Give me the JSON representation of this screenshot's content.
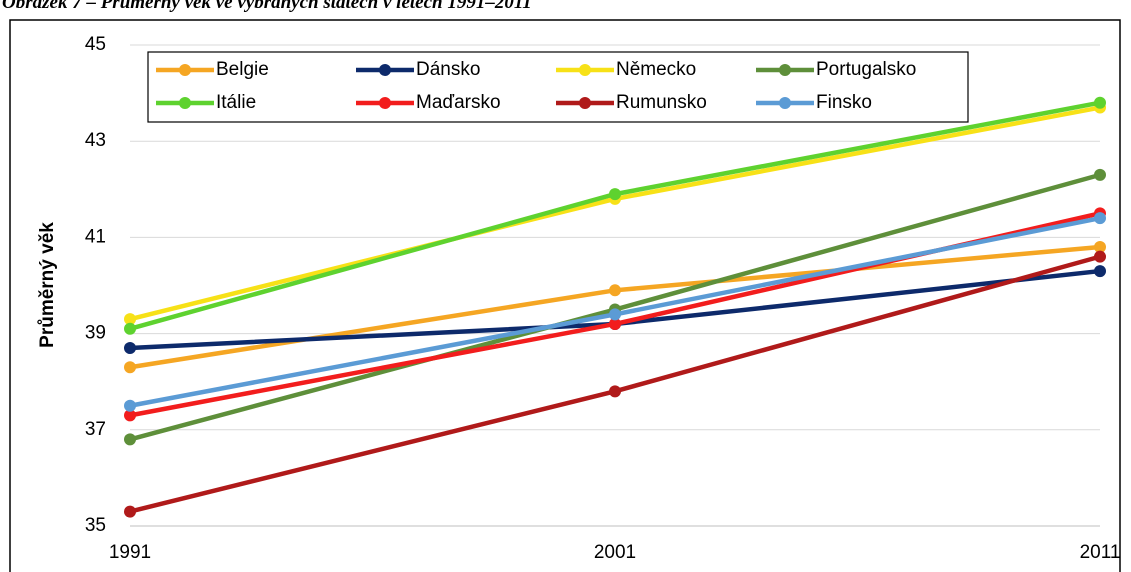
{
  "chart_data": {
    "type": "line",
    "title": "Obrázek 7 – Průměrný věk ve vybraných státech v letech 1991–2011",
    "y_label": "Průměrný věk",
    "x": [
      1991,
      2001,
      2011
    ],
    "xlim": [
      1991,
      2011
    ],
    "xticks": [
      1991,
      2001,
      2011
    ],
    "ylim": [
      35,
      45
    ],
    "yticks": [
      35,
      37,
      39,
      41,
      43,
      45
    ],
    "grid": true,
    "legend": "top",
    "series": [
      {
        "name": "Belgie",
        "color": "#f5a623",
        "values": [
          38.3,
          39.9,
          40.8
        ]
      },
      {
        "name": "Dánsko",
        "color": "#0d2a6b",
        "values": [
          38.7,
          39.2,
          40.3
        ]
      },
      {
        "name": "Německo",
        "color": "#f7e117",
        "values": [
          39.3,
          41.8,
          43.7
        ]
      },
      {
        "name": "Portugalsko",
        "color": "#5e8f3a",
        "values": [
          36.8,
          39.5,
          42.3
        ]
      },
      {
        "name": "Itálie",
        "color": "#5ed22f",
        "values": [
          39.1,
          41.9,
          43.8
        ]
      },
      {
        "name": "Maďarsko",
        "color": "#f21d1d",
        "values": [
          37.3,
          39.2,
          41.5
        ]
      },
      {
        "name": "Rumunsko",
        "color": "#b01a1a",
        "values": [
          35.3,
          37.8,
          40.6
        ]
      },
      {
        "name": "Finsko",
        "color": "#5b9bd5",
        "values": [
          37.5,
          39.4,
          41.4
        ]
      }
    ]
  }
}
